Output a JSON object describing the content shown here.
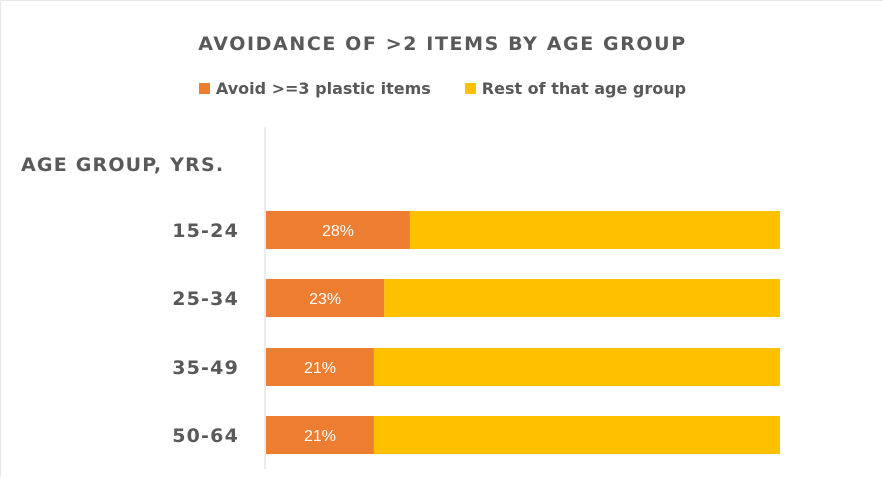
{
  "colors": {
    "series_1": "#ED7D31",
    "series_2": "#FFC000",
    "axis": "#d9d9d9",
    "text": "#595959",
    "data_label": "#ffffff"
  },
  "chart_data": {
    "type": "bar",
    "orientation": "horizontal",
    "stacked": "percent",
    "title": "AVOIDANCE OF >2 ITEMS BY AGE GROUP",
    "ylabel": "AGE GROUP, YRS.",
    "categories": [
      "15-24",
      "25-34",
      "35-49",
      "50-64"
    ],
    "series": [
      {
        "name": "Avoid >=3 plastic items",
        "values": [
          28,
          23,
          21,
          21
        ],
        "labels": [
          "28%",
          "23%",
          "21%",
          "21%"
        ]
      },
      {
        "name": "Rest of that age group",
        "values": [
          72,
          77,
          79,
          79
        ]
      }
    ],
    "xlim": [
      0,
      100
    ],
    "grid": false,
    "legend_position": "top"
  }
}
